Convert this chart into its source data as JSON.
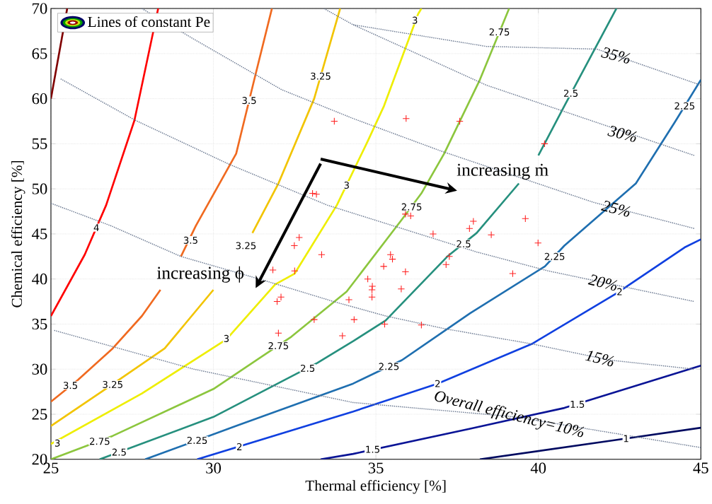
{
  "chart_data": {
    "type": "line",
    "xlabel": "Thermal efficiency [%]",
    "ylabel": "Chemical efficiency [%]",
    "legend_title": "Lines of constant Pe",
    "grid": true,
    "xlim": [
      25,
      45
    ],
    "ylim": [
      20,
      70
    ],
    "xticks": [
      25,
      30,
      35,
      40,
      45
    ],
    "yticks": [
      20,
      25,
      30,
      35,
      40,
      45,
      50,
      55,
      60,
      65,
      70
    ],
    "series": [
      {
        "color": "#800000",
        "line_style": "solid",
        "x": [
          25,
          25.5
        ],
        "values": [
          60,
          70
        ]
      },
      {
        "color": "#ff0000",
        "line_style": "solid",
        "x": [
          25,
          26.04,
          26.7,
          27.57,
          28.3
        ],
        "values": [
          35.9,
          42.7,
          48.2,
          57.6,
          70
        ]
      },
      {
        "color": "#f06a20",
        "line_style": "solid",
        "x": [
          25,
          25.83,
          26.9,
          27.8,
          28.37,
          28.7,
          29.0,
          29.46,
          30.7,
          31.27,
          31.8
        ],
        "values": [
          26.4,
          28.8,
          32.3,
          35.9,
          38.8,
          null,
          42.5,
          45.9,
          53.9,
          62.3,
          70
        ]
      },
      {
        "color": "#f2c400",
        "line_style": "solid",
        "x": [
          25,
          26.6,
          28.5,
          30.0,
          30.6,
          31.2,
          32.0,
          33.1,
          33.9
        ],
        "values": [
          23.7,
          27.6,
          32.3,
          38.8,
          null,
          45.1,
          50.6,
          60.0,
          70
        ]
      },
      {
        "color": "#eeee00",
        "line_style": "solid",
        "x": [
          25,
          27.8,
          30.4,
          31.9,
          32.5,
          33.8,
          34.75,
          35.25,
          36.3,
          36.4
        ],
        "values": [
          21.7,
          27.3,
          33.3,
          39.4,
          40.6,
          48.2,
          55.3,
          59.2,
          69.4,
          70
        ]
      },
      {
        "color": "#8cc63e",
        "line_style": "solid",
        "x": [
          25,
          26.9,
          30.0,
          32.4,
          34.1,
          35.8,
          36.4,
          37.1,
          38.2,
          39.1
        ],
        "values": [
          20,
          22.6,
          27.8,
          33.6,
          38.6,
          46.6,
          49.5,
          53.9,
          62.1,
          70
        ]
      },
      {
        "color": "#26907e",
        "line_style": "solid",
        "x": [
          26.5,
          30.0,
          33.2,
          34.3,
          35.3,
          37.2,
          38.1,
          39.4,
          39.7,
          40.0,
          40.8,
          42.4
        ],
        "values": [
          20,
          24.7,
          30.7,
          33.1,
          35.4,
          42.5,
          45.1,
          50.6,
          null,
          53.7,
          59.2,
          70
        ]
      },
      {
        "color": "#1f6fb0",
        "line_style": "solid",
        "x": [
          27.9,
          30.7,
          34.3,
          35.8,
          37.9,
          40.2,
          40.8,
          43.0,
          44.2,
          45
        ],
        "values": [
          20,
          23.7,
          28.4,
          31.0,
          36.2,
          41.4,
          43.7,
          50.6,
          57.4,
          62.1
        ]
      },
      {
        "color": "#1040e0",
        "line_style": "solid",
        "x": [
          29.5,
          34.3,
          36.9,
          39.8,
          42.4,
          44.5,
          45
        ],
        "values": [
          20,
          25.3,
          28.4,
          32.8,
          38.4,
          43.5,
          44.4
        ]
      },
      {
        "color": "#0a1496",
        "line_style": "solid",
        "x": [
          33.3,
          34.3,
          37.9,
          40.8,
          45
        ],
        "values": [
          20,
          20.6,
          23.4,
          25.7,
          30.4
        ]
      },
      {
        "color": "#000a60",
        "line_style": "solid",
        "x": [
          38.2,
          42.3,
          45
        ],
        "values": [
          20,
          22.1,
          23.5
        ]
      },
      {
        "type": "line",
        "color": "#6a7890",
        "line_style": "dotted",
        "x": [
          34.3,
          38.4,
          41.8,
          45
        ],
        "values": [
          68.2,
          65.8,
          65.5,
          61.5
        ]
      },
      {
        "type": "line",
        "color": "#6a7890",
        "line_style": "dotted",
        "x": [
          33.4,
          34.3,
          38.4,
          44.8
        ],
        "values": [
          70,
          68.2,
          61.5,
          53.7
        ]
      },
      {
        "type": "line",
        "color": "#6a7890",
        "line_style": "dotted",
        "x": [
          27.8,
          29.4,
          32.1,
          34.3,
          37.0,
          41.7,
          44.8
        ],
        "values": [
          70,
          66.6,
          61.0,
          57.8,
          54.2,
          48.5,
          45.6
        ]
      },
      {
        "type": "line",
        "color": "#6a7890",
        "line_style": "dotted",
        "x": [
          25.3,
          27.6,
          30.5,
          33.5,
          35.8,
          38.1,
          40.3,
          44.8
        ],
        "values": [
          62.2,
          57.6,
          52.7,
          48.2,
          45.6,
          43.0,
          40.9,
          37.5
        ]
      },
      {
        "type": "line",
        "color": "#6a7890",
        "line_style": "dotted",
        "x": [
          25,
          26.85,
          29.0,
          31.6,
          33.7,
          35.3,
          37.1,
          39.8,
          42.2,
          44.8
        ],
        "values": [
          48.4,
          45.9,
          42.5,
          39.8,
          37.5,
          35.9,
          34.5,
          32.8,
          31.0,
          30.0
        ]
      },
      {
        "type": "line",
        "color": "#6a7890",
        "line_style": "dotted",
        "x": [
          25.1,
          29.4,
          34.3,
          39.3,
          45
        ],
        "values": [
          34.3,
          30.0,
          26.3,
          24.7,
          21.3
        ]
      },
      {
        "type": "scatter",
        "color": "#ff2020",
        "marker": "cross",
        "x": [
          33.72,
          35.93,
          37.58,
          40.19,
          33.05,
          33.17,
          35.91,
          36.07,
          38.0,
          37.88,
          39.6,
          38.55,
          39.99,
          36.76,
          32.64,
          32.49,
          33.33,
          31.83,
          32.5,
          35.45,
          35.51,
          35.24,
          35.91,
          37.26,
          37.16,
          39.21,
          34.75,
          34.89,
          34.88,
          34.88,
          35.78,
          32.08,
          31.96,
          34.17,
          33.1,
          34.33,
          35.27,
          36.4,
          32.0,
          33.97
        ],
        "values": [
          57.5,
          57.8,
          57.5,
          55.0,
          49.5,
          49.4,
          47.2,
          47.0,
          46.4,
          45.6,
          46.7,
          44.9,
          44.0,
          45.0,
          44.6,
          43.7,
          42.7,
          41.0,
          40.9,
          42.7,
          42.2,
          41.4,
          40.8,
          42.5,
          41.6,
          40.6,
          40.0,
          39.2,
          38.8,
          38.0,
          38.9,
          38.0,
          37.5,
          37.7,
          35.5,
          35.5,
          35.0,
          34.9,
          34.0,
          33.7
        ]
      }
    ],
    "annotations": [
      {
        "text": "4",
        "x": 26.4,
        "y": 45.7
      },
      {
        "text": "3.5",
        "x": 25.6,
        "y": 28.2
      },
      {
        "text": "3.5",
        "x": 29.3,
        "y": 44.3
      },
      {
        "text": "3.5",
        "x": 31.1,
        "y": 59.8
      },
      {
        "text": "3.25",
        "x": 26.9,
        "y": 28.3
      },
      {
        "text": "3.25",
        "x": 31.0,
        "y": 43.7
      },
      {
        "text": "3.25",
        "x": 33.3,
        "y": 62.5
      },
      {
        "text": "3",
        "x": 25.2,
        "y": 21.8
      },
      {
        "text": "3",
        "x": 30.4,
        "y": 33.4
      },
      {
        "text": "3",
        "x": 34.1,
        "y": 50.4
      },
      {
        "text": "3",
        "x": 36.2,
        "y": 68.7
      },
      {
        "text": "2.75",
        "x": 26.5,
        "y": 22.0
      },
      {
        "text": "2.75",
        "x": 32.0,
        "y": 32.6
      },
      {
        "text": "2.75",
        "x": 36.1,
        "y": 48.0
      },
      {
        "text": "2.75",
        "x": 38.8,
        "y": 67.4
      },
      {
        "text": "2.5",
        "x": 27.1,
        "y": 20.8
      },
      {
        "text": "2.5",
        "x": 32.9,
        "y": 30.1
      },
      {
        "text": "2.5",
        "x": 37.7,
        "y": 43.9
      },
      {
        "text": "2.5",
        "x": 41.0,
        "y": 60.6
      },
      {
        "text": "2.25",
        "x": 29.5,
        "y": 22.1
      },
      {
        "text": "2.25",
        "x": 35.4,
        "y": 30.3
      },
      {
        "text": "2.25",
        "x": 40.5,
        "y": 42.5
      },
      {
        "text": "2.25",
        "x": 44.5,
        "y": 59.2
      },
      {
        "text": "2",
        "x": 30.8,
        "y": 21.4
      },
      {
        "text": "2",
        "x": 36.9,
        "y": 28.4
      },
      {
        "text": "2",
        "x": 42.5,
        "y": 38.6
      },
      {
        "text": "1.5",
        "x": 34.9,
        "y": 21.1
      },
      {
        "text": "1.5",
        "x": 41.2,
        "y": 26.1
      },
      {
        "text": "1",
        "x": 42.7,
        "y": 22.3
      },
      {
        "text": "35%",
        "x": 42.4,
        "y": 64.8
      },
      {
        "text": "30%",
        "x": 42.6,
        "y": 56.1
      },
      {
        "text": "25%",
        "x": 42.4,
        "y": 47.8
      },
      {
        "text": "20%",
        "x": 42.0,
        "y": 39.6
      },
      {
        "text": "15%",
        "x": 41.9,
        "y": 31.2
      },
      {
        "text": "Overall efficiency=10%",
        "x": 39.1,
        "y": 24.9
      },
      "increasing ϕ",
      "increasing ṁ"
    ]
  }
}
